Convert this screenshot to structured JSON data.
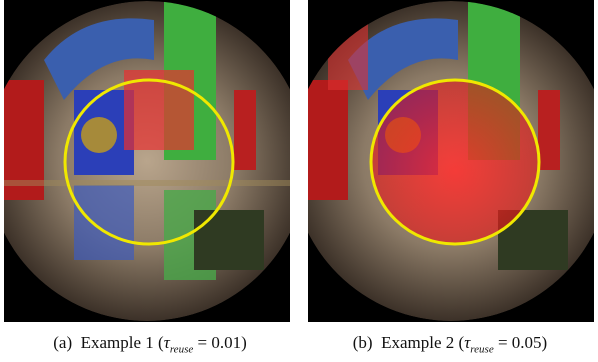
{
  "figure": {
    "subfigures": [
      {
        "label": "(a)",
        "text": "Example 1",
        "symbol": "τ",
        "subscript": "reuse",
        "relation": "= 0.01"
      },
      {
        "label": "(b)",
        "text": "Example 2",
        "symbol": "τ",
        "subscript": "reuse",
        "relation": "= 0.05"
      }
    ]
  }
}
